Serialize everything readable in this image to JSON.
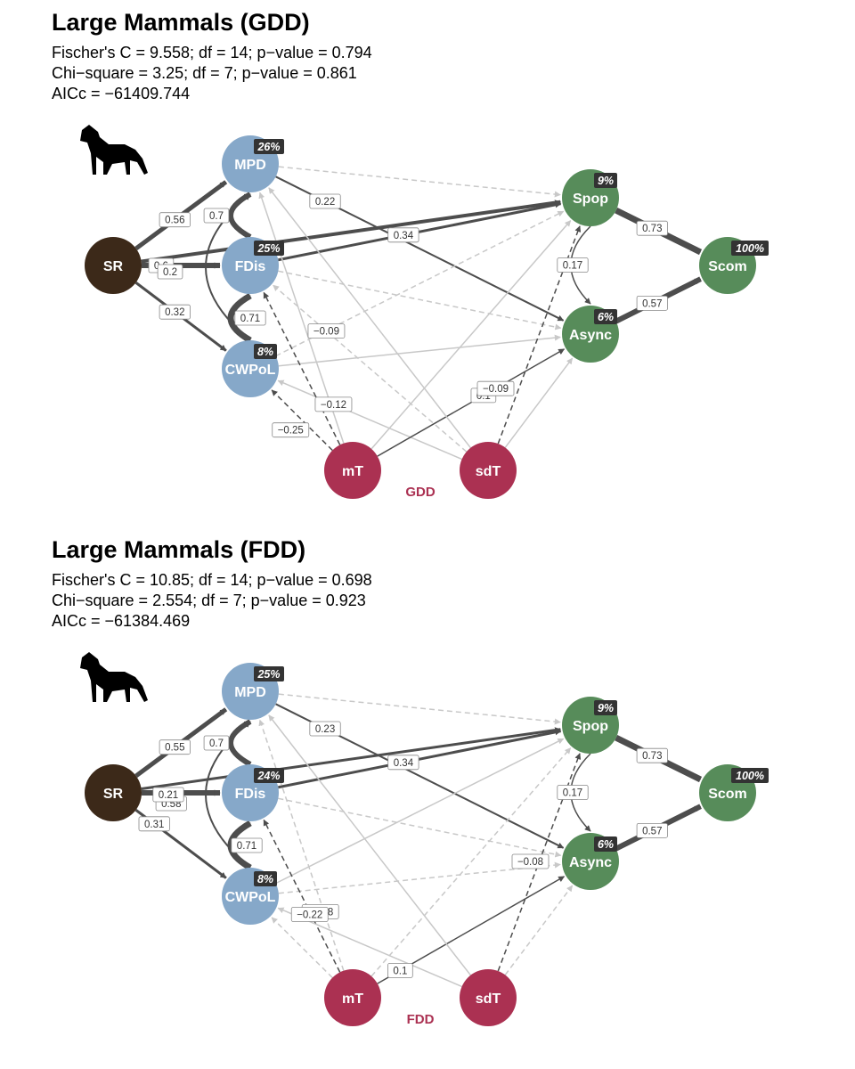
{
  "panels": [
    {
      "title": "Large Mammals (GDD)",
      "stats": [
        "Fischer's C = 9.558; df = 14; p−value = 0.794",
        "Chi−square = 3.25; df = 7; p−value = 0.861",
        "AICc = −61409.744"
      ],
      "tag": "GDD",
      "icon": "wolf-silhouette-icon",
      "nodes": {
        "SR": {
          "label": "SR"
        },
        "MPD": {
          "label": "MPD",
          "pct": "26%"
        },
        "FDis": {
          "label": "FDis",
          "pct": "25%"
        },
        "CWPoL": {
          "label": "CWPoL",
          "pct": "8%"
        },
        "Spop": {
          "label": "Spop",
          "pct": "9%"
        },
        "Async": {
          "label": "Async",
          "pct": "6%"
        },
        "Scom": {
          "label": "Scom",
          "pct": "100%"
        },
        "mT": {
          "label": "mT"
        },
        "sdT": {
          "label": "sdT"
        }
      },
      "coef_labels": [
        "0.56",
        "0.6",
        "0.32",
        "0.7",
        "0.2",
        "0.71",
        "0.22",
        "0.34",
        "0.73",
        "0.17",
        "0.57",
        "−0.12",
        "−0.09",
        "−0.25",
        "0.1",
        "−0.09"
      ]
    },
    {
      "title": "Large Mammals (FDD)",
      "stats": [
        "Fischer's C = 10.85; df = 14; p−value = 0.698",
        "Chi−square = 2.554; df = 7; p−value = 0.923",
        "AICc = −61384.469"
      ],
      "tag": "FDD",
      "icon": "wolf-silhouette-icon",
      "nodes": {
        "SR": {
          "label": "SR"
        },
        "MPD": {
          "label": "MPD",
          "pct": "25%"
        },
        "FDis": {
          "label": "FDis",
          "pct": "24%"
        },
        "CWPoL": {
          "label": "CWPoL",
          "pct": "8%"
        },
        "Spop": {
          "label": "Spop",
          "pct": "9%"
        },
        "Async": {
          "label": "Async",
          "pct": "6%"
        },
        "Scom": {
          "label": "Scom",
          "pct": "100%"
        },
        "mT": {
          "label": "mT"
        },
        "sdT": {
          "label": "sdT"
        }
      },
      "coef_labels": [
        "0.55",
        "0.58",
        "0.31",
        "0.7",
        "0.21",
        "0.71",
        "0.23",
        "0.34",
        "0.73",
        "0.17",
        "0.57",
        "−0.08",
        "−0.22",
        "0.1",
        "−0.08"
      ]
    }
  ],
  "colors": {
    "diversity_node": "#86a8c9",
    "stability_node": "#578c5a",
    "climate_node": "#ab3152",
    "richness_node": "#3c2919",
    "positive_edge": "#4d4d4d",
    "weak_edge": "#c8c8c8",
    "badge_bg": "#333333"
  }
}
